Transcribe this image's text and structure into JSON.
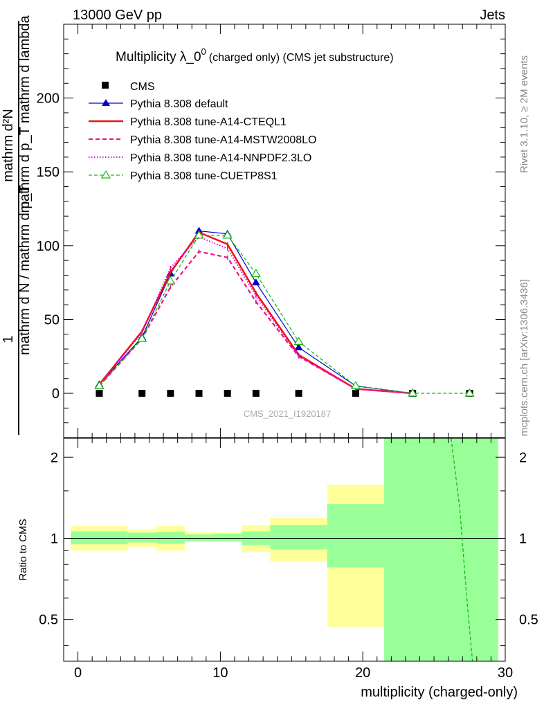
{
  "header": {
    "left": "13000 GeV pp",
    "right": "Jets"
  },
  "side_labels": {
    "rivet": "Rivet 3.1.10, ≥ 2M events",
    "mcplots": "mcplots.cern.ch [arXiv:1306.3436]"
  },
  "watermark": "CMS_2021_I1920187",
  "chart_data": [
    {
      "type": "line",
      "title_main": "Multiplicity λ_0",
      "title_sup": "0",
      "title_sub": "(charged only) (CMS jet substructure)",
      "ylabel_num": "1",
      "ylabel_den": "mathrm d N / mathrm d p_T",
      "ylabel_den_sub": "T",
      "ylabel_right_num": "mathrm d²N",
      "ylabel_right_den": "mathrm d p_T mathrm d lambda",
      "xlim": [
        -1,
        30
      ],
      "ylim": [
        -30,
        250
      ],
      "yticks": [
        0,
        50,
        100,
        150,
        200
      ],
      "ytick_labels": [
        "0",
        "50",
        "100",
        "150",
        "200"
      ],
      "legend_position": "top-left",
      "series": [
        {
          "name": "CMS",
          "color": "#000000",
          "style": "marker-square",
          "x": [
            1.5,
            4.5,
            6.5,
            8.5,
            10.5,
            12.5,
            15.5,
            19.5,
            23.5,
            27.5
          ],
          "y": [
            0,
            0,
            0,
            0,
            0,
            0,
            0,
            0,
            0,
            0
          ]
        },
        {
          "name": "Pythia 8.308 default",
          "color": "#0000cc",
          "style": "solid-triangle",
          "x": [
            1.5,
            4.5,
            6.5,
            8.5,
            10.5,
            12.5,
            15.5,
            19.5,
            23.5
          ],
          "y": [
            6,
            38,
            81,
            110,
            108,
            75,
            31,
            5,
            0
          ]
        },
        {
          "name": "Pythia 8.308 tune-A14-CTEQL1",
          "color": "#ee1111",
          "style": "solid-thick",
          "x": [
            1.5,
            4.5,
            6.5,
            8.5,
            10.5,
            12.5,
            15.5,
            19.5,
            23.5
          ],
          "y": [
            6,
            42,
            82,
            109,
            101,
            68,
            26,
            3,
            0
          ]
        },
        {
          "name": "Pythia 8.308 tune-A14-MSTW2008LO",
          "color": "#ee1188",
          "style": "dashed",
          "x": [
            1.5,
            4.5,
            6.5,
            8.5,
            10.5,
            12.5,
            15.5,
            19.5,
            23.5
          ],
          "y": [
            5,
            37,
            72,
            96,
            92,
            62,
            25,
            3,
            0
          ]
        },
        {
          "name": "Pythia 8.308 tune-A14-NNPDF2.3LO",
          "color": "#ee00cc",
          "style": "dotted",
          "x": [
            1.5,
            4.5,
            6.5,
            8.5,
            10.5,
            12.5,
            15.5,
            19.5,
            23.5
          ],
          "y": [
            6,
            41,
            85,
            106,
            98,
            66,
            25,
            3,
            0
          ]
        },
        {
          "name": "Pythia 8.308 tune-CUETP8S1",
          "color": "#11bb11",
          "style": "dashed-open-triangle",
          "x": [
            1.5,
            4.5,
            6.5,
            8.5,
            10.5,
            12.5,
            15.5,
            19.5,
            23.5,
            27.5
          ],
          "y": [
            5,
            37,
            76,
            107,
            107,
            81,
            35,
            5,
            0,
            0
          ]
        }
      ]
    },
    {
      "type": "area",
      "ylabel": "Ratio to CMS",
      "xlabel": "multiplicity (charged-only)",
      "xlim": [
        -1,
        30
      ],
      "ylim": [
        0.35,
        2.35
      ],
      "yscale": "log",
      "xticks": [
        0,
        10,
        20,
        30
      ],
      "xtick_labels": [
        "0",
        "10",
        "20",
        "30"
      ],
      "yticks": [
        0.5,
        1,
        2
      ],
      "ytick_labels": [
        "0.5",
        "1",
        "2"
      ],
      "bins": [
        {
          "lo": -0.5,
          "hi": 3.5,
          "stat_lo": 0.95,
          "stat_hi": 1.06,
          "tot_lo": 0.9,
          "tot_hi": 1.11
        },
        {
          "lo": 3.5,
          "hi": 5.5,
          "stat_lo": 0.965,
          "stat_hi": 1.05,
          "tot_lo": 0.93,
          "tot_hi": 1.08
        },
        {
          "lo": 5.5,
          "hi": 7.5,
          "stat_lo": 0.955,
          "stat_hi": 1.055,
          "tot_lo": 0.9,
          "tot_hi": 1.11
        },
        {
          "lo": 7.5,
          "hi": 9.5,
          "stat_lo": 0.975,
          "stat_hi": 1.035,
          "tot_lo": 0.97,
          "tot_hi": 1.055
        },
        {
          "lo": 9.5,
          "hi": 11.5,
          "stat_lo": 0.975,
          "stat_hi": 1.04,
          "tot_lo": 0.97,
          "tot_hi": 1.055
        },
        {
          "lo": 11.5,
          "hi": 13.5,
          "stat_lo": 0.945,
          "stat_hi": 1.06,
          "tot_lo": 0.89,
          "tot_hi": 1.12
        },
        {
          "lo": 13.5,
          "hi": 17.5,
          "stat_lo": 0.91,
          "stat_hi": 1.12,
          "tot_lo": 0.82,
          "tot_hi": 1.19
        },
        {
          "lo": 17.5,
          "hi": 21.5,
          "stat_lo": 0.78,
          "stat_hi": 1.34,
          "tot_lo": 0.47,
          "tot_hi": 1.58
        },
        {
          "lo": 21.5,
          "hi": 29.5,
          "stat_lo": 0.35,
          "stat_hi": 2.35,
          "tot_lo": 0.35,
          "tot_hi": 2.35
        }
      ],
      "ratio_lines": [
        {
          "name": "Pythia 8.308 tune-CUETP8S1",
          "color": "#11bb11",
          "style": "dashed",
          "x": [
            26.2,
            26.8,
            27.3,
            27.7
          ],
          "y": [
            2.35,
            1.3,
            0.6,
            0.35
          ]
        }
      ]
    }
  ]
}
